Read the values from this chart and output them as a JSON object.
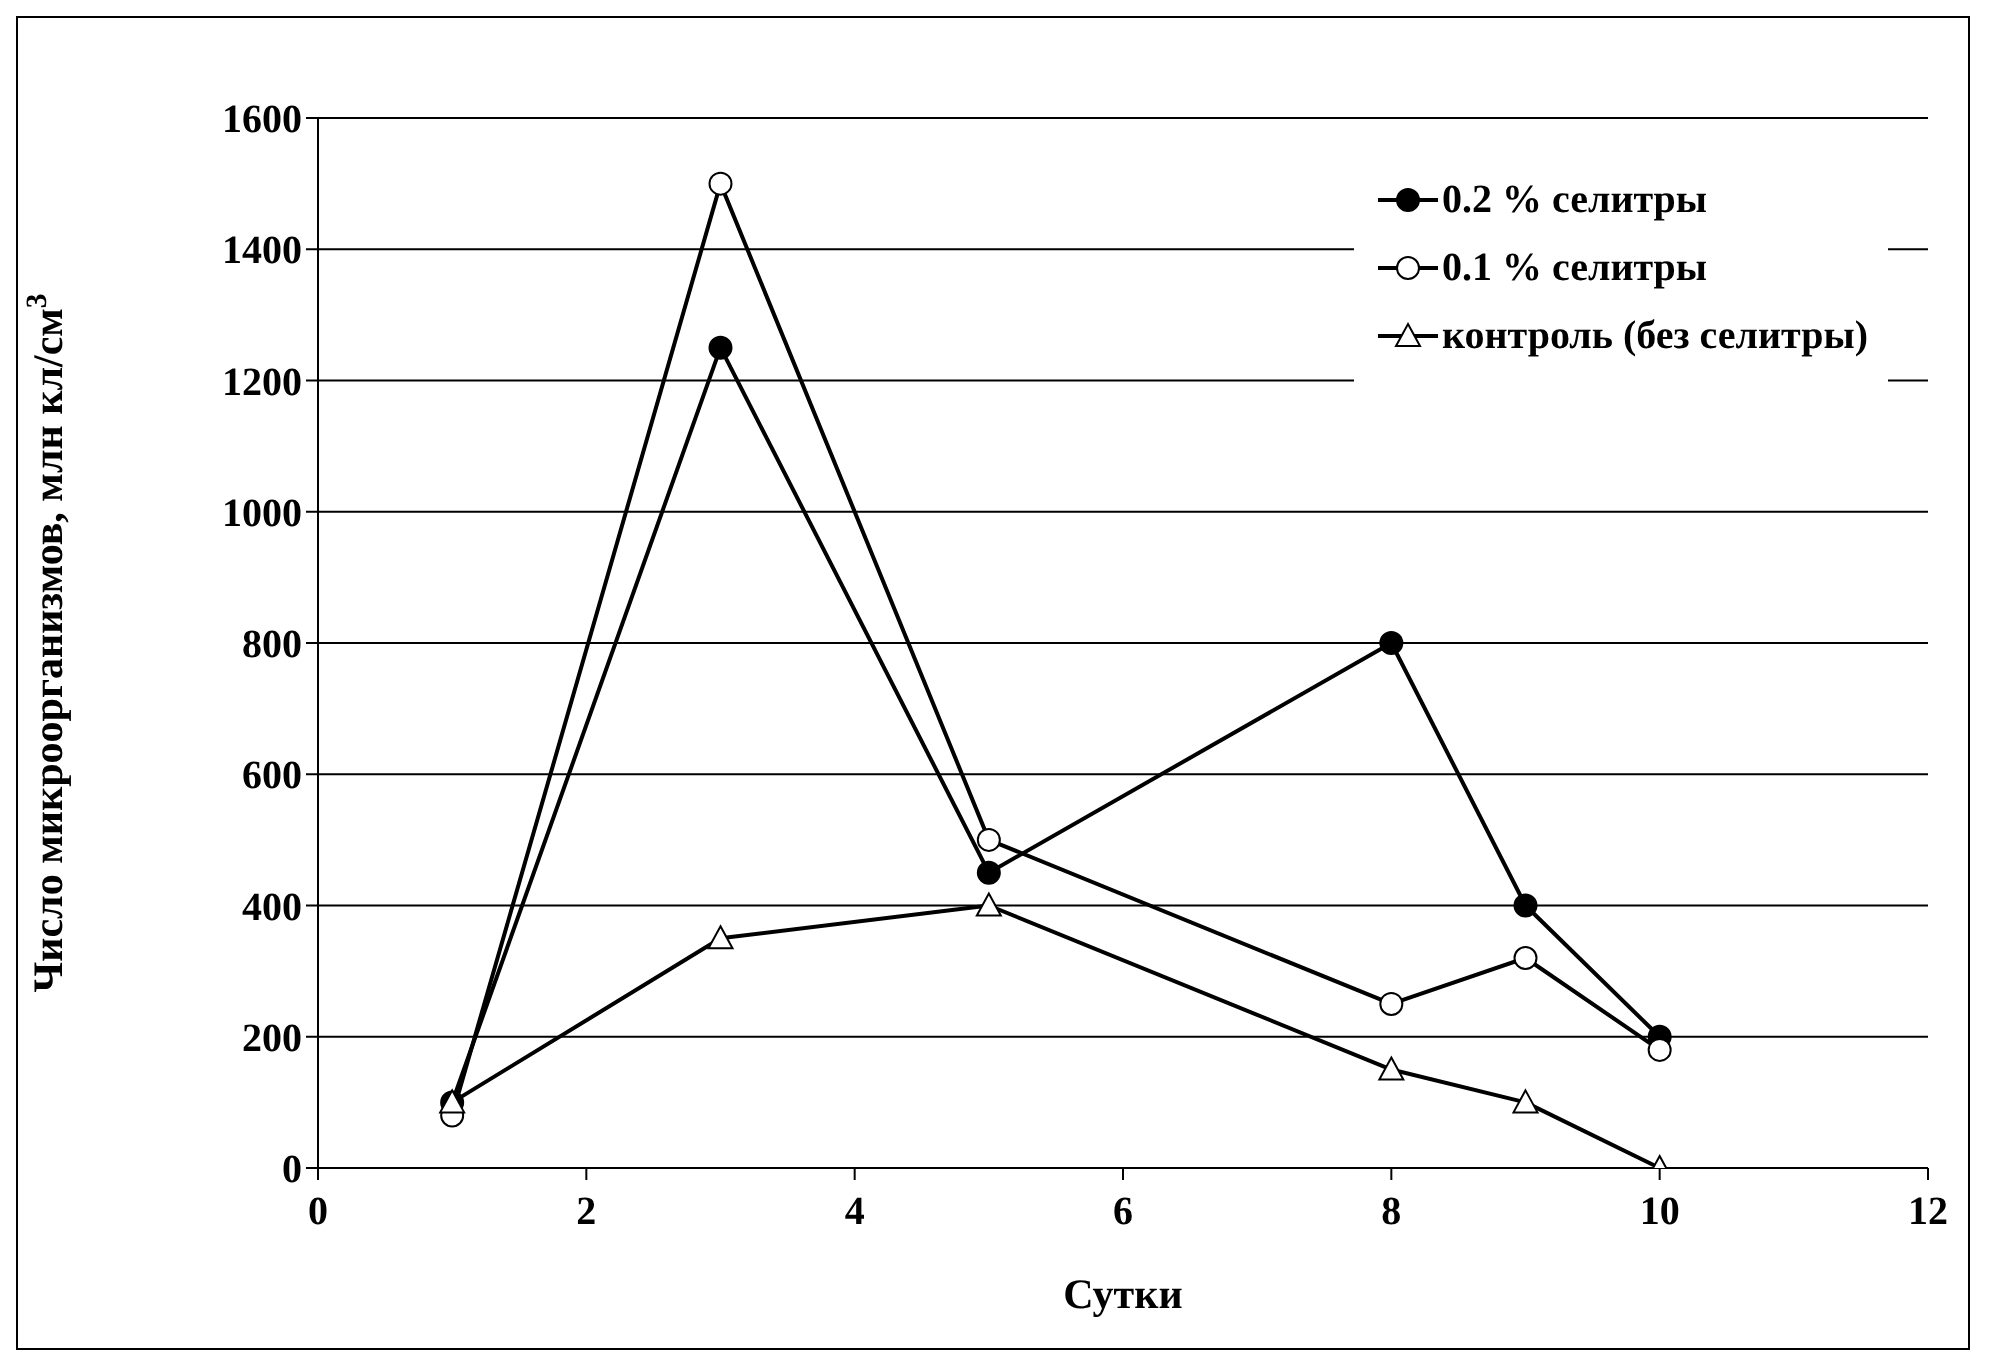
{
  "chart_data": {
    "type": "line",
    "xlabel": "Сутки",
    "ylabel": "Число микроорганизмов, млн кл/см$^{3}$",
    "x": [
      1,
      3,
      5,
      8,
      9,
      10
    ],
    "series": [
      {
        "name": "0.2 % селитры",
        "color": "#000000",
        "marker": "circle",
        "values": [
          100,
          1250,
          450,
          800,
          400,
          200
        ]
      },
      {
        "name": "0.1 % селитры",
        "color": "#000000",
        "marker": "open-circle",
        "values": [
          80,
          1500,
          500,
          250,
          320,
          180
        ]
      },
      {
        "name": "контроль (без селитры)",
        "color": "#000000",
        "marker": "triangle",
        "values": [
          100,
          350,
          400,
          150,
          100,
          0
        ]
      }
    ],
    "xlim": [
      0,
      12
    ],
    "xticks": [
      0,
      2,
      4,
      6,
      8,
      10,
      12
    ],
    "ylim": [
      0,
      1600
    ],
    "yticks": [
      0,
      200,
      400,
      600,
      800,
      1000,
      1200,
      1400,
      1600
    ],
    "grid": "y",
    "legend": "top right",
    "line_style": "solid"
  }
}
